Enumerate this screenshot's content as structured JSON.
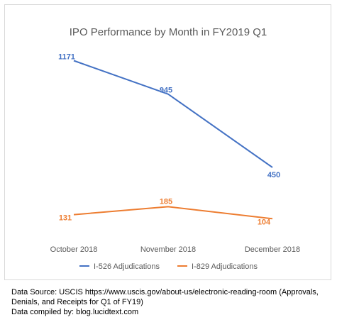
{
  "chart_data": {
    "type": "line",
    "title": "IPO Performance by Month in FY2019 Q1",
    "categories": [
      "October 2018",
      "November 2018",
      "December 2018"
    ],
    "series": [
      {
        "name": "I-526 Adjudications",
        "values": [
          1171,
          945,
          450
        ],
        "color": "#4472C4"
      },
      {
        "name": "I-829 Adjudications",
        "values": [
          131,
          185,
          104
        ],
        "color": "#ED7D31"
      }
    ],
    "ylim": [
      0,
      1250
    ],
    "grid": false,
    "legend": "bottom"
  },
  "source": {
    "line1": "Data Source: USCIS  https://www.uscis.gov/about-us/electronic-reading-room (Approvals,",
    "line2": "Denials, and Receipts for Q1 of FY19)",
    "line3": "Data compiled by: blog.lucidtext.com"
  }
}
